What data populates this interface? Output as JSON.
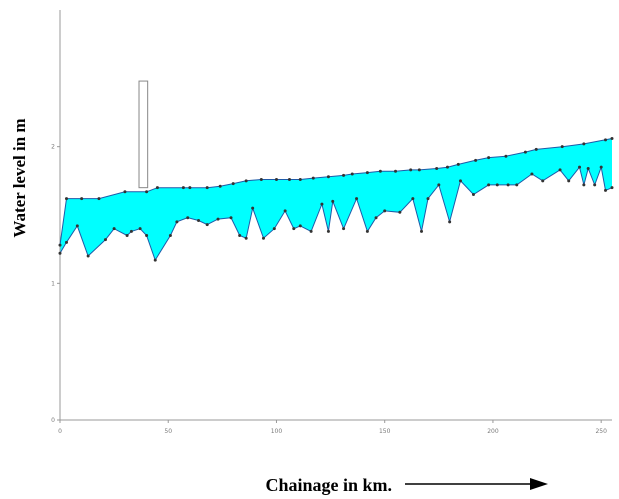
{
  "chart_data": {
    "type": "area",
    "title": "",
    "xlabel": "Chainage in km.",
    "ylabel": "Water level in m",
    "xlim": [
      0,
      255
    ],
    "ylim": [
      0,
      3
    ],
    "grid": false,
    "x_ticks": [
      0,
      50,
      100,
      150,
      200,
      250
    ],
    "x_tick_labels": [
      "0",
      "50",
      "100",
      "150",
      "200",
      "250"
    ],
    "y_ticks": [
      0,
      1,
      2
    ],
    "y_tick_labels": [
      "0",
      "1",
      "2"
    ],
    "series": [
      {
        "role": "water-surface",
        "color": "#1e5aa8",
        "x": [
          0,
          3,
          10,
          18,
          30,
          40,
          45,
          57,
          60,
          68,
          74,
          80,
          86,
          93,
          100,
          106,
          111,
          117,
          124,
          131,
          135,
          142,
          148,
          155,
          162,
          166,
          174,
          179,
          184,
          192,
          198,
          206,
          215,
          220,
          232,
          242,
          252,
          255
        ],
        "values": [
          1.28,
          1.62,
          1.62,
          1.62,
          1.67,
          1.67,
          1.7,
          1.7,
          1.7,
          1.7,
          1.71,
          1.73,
          1.75,
          1.76,
          1.76,
          1.76,
          1.76,
          1.77,
          1.78,
          1.79,
          1.8,
          1.81,
          1.82,
          1.82,
          1.83,
          1.83,
          1.84,
          1.85,
          1.87,
          1.9,
          1.92,
          1.93,
          1.96,
          1.98,
          2.0,
          2.02,
          2.05,
          2.06
        ]
      },
      {
        "role": "bed-level",
        "color": "#1e5aa8",
        "x": [
          0,
          3,
          8,
          13,
          21,
          25,
          31,
          33,
          37,
          40,
          44,
          51,
          54,
          59,
          64,
          68,
          73,
          79,
          83,
          86,
          89,
          94,
          99,
          104,
          108,
          111,
          116,
          121,
          124,
          126,
          131,
          137,
          142,
          146,
          150,
          157,
          163,
          167,
          170,
          175,
          180,
          185,
          191,
          198,
          202,
          207,
          211,
          218,
          223,
          231,
          235,
          240,
          242,
          244,
          247,
          250,
          252,
          255
        ],
        "values": [
          1.22,
          1.3,
          1.42,
          1.2,
          1.32,
          1.4,
          1.35,
          1.38,
          1.4,
          1.35,
          1.17,
          1.35,
          1.45,
          1.48,
          1.46,
          1.43,
          1.47,
          1.48,
          1.35,
          1.33,
          1.55,
          1.33,
          1.4,
          1.53,
          1.4,
          1.42,
          1.38,
          1.58,
          1.38,
          1.6,
          1.4,
          1.62,
          1.38,
          1.48,
          1.53,
          1.52,
          1.62,
          1.38,
          1.62,
          1.72,
          1.45,
          1.75,
          1.65,
          1.72,
          1.72,
          1.72,
          1.72,
          1.8,
          1.75,
          1.83,
          1.75,
          1.85,
          1.72,
          1.84,
          1.72,
          1.85,
          1.68,
          1.7
        ]
      }
    ],
    "annotations": [
      {
        "type": "rectangle-outline",
        "x_range": [
          36.5,
          40.5
        ],
        "y_range": [
          1.7,
          2.48
        ]
      }
    ],
    "fill_color": "#00ffff",
    "axis_color": "#999999",
    "arrow_color": "#000000"
  }
}
